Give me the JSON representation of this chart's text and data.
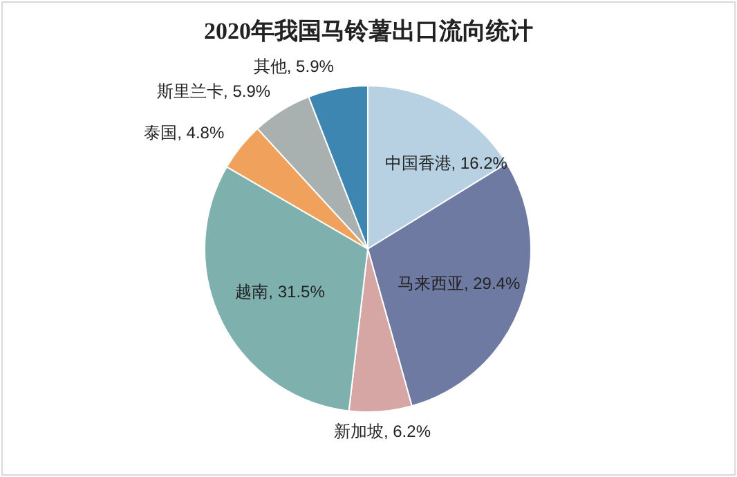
{
  "chart_data": {
    "type": "pie",
    "title": "2020年我国马铃薯出口流向统计",
    "categories": [
      "中国香港",
      "马来西亚",
      "新加坡",
      "越南",
      "泰国",
      "斯里兰卡",
      "其他"
    ],
    "values": [
      16.2,
      29.4,
      6.2,
      31.5,
      4.8,
      5.9,
      5.9
    ],
    "colors": [
      "#b7d0e2",
      "#6e7aa2",
      "#d5a6a4",
      "#7eb1ae",
      "#f0a25c",
      "#a9b0b0",
      "#3e86b2"
    ],
    "value_labels": [
      "16.2%",
      "29.4%",
      "6.2%",
      "31.5%",
      "4.8%",
      "5.9%",
      "5.9%"
    ]
  }
}
